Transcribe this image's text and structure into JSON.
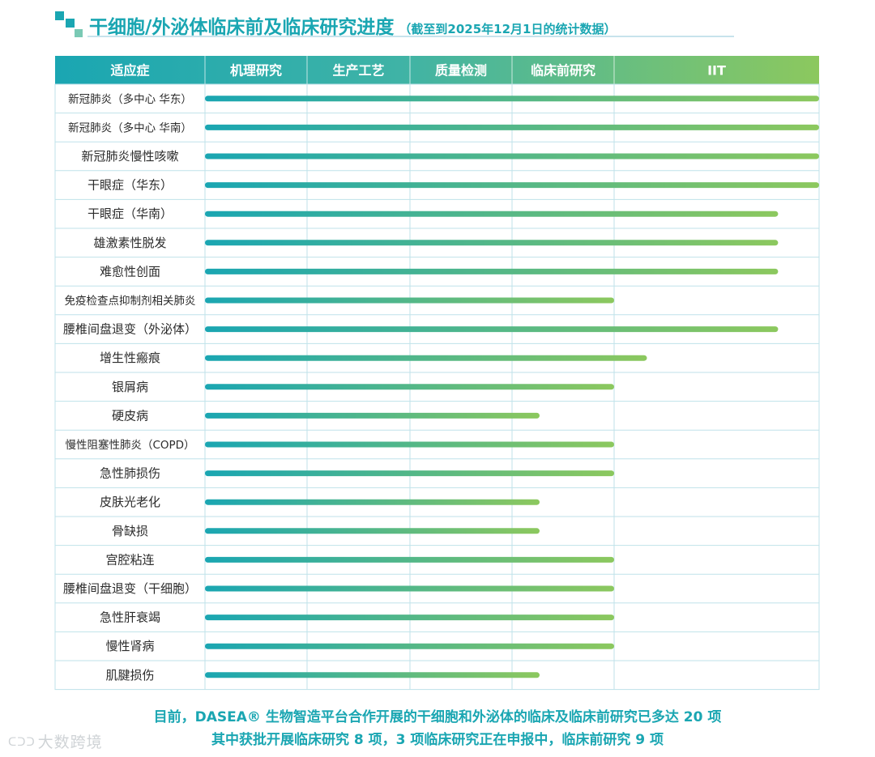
{
  "header": {
    "title": "干细胞/外泌体临床前及临床研究进度",
    "subtitle": "（截至到2025年12月1日的统计数据）"
  },
  "colors": {
    "accent": "#1aa6b2",
    "gradient_start": "#1aa6b2",
    "gradient_end": "#8cc85e",
    "grid": "#bfe2ea",
    "row_label_text": "#2b2b2b"
  },
  "chart_data": {
    "type": "bar",
    "orientation": "horizontal",
    "column_header": "适应症",
    "stages": [
      "机理研究",
      "生产工艺",
      "质量检测",
      "临床前研究",
      "IIT"
    ],
    "value_unit": "stages completed (0–5 scale, 5 = end of IIT column)",
    "xlim": [
      0,
      5
    ],
    "categories": [
      "新冠肺炎（多中心 华东）",
      "新冠肺炎（多中心 华南）",
      "新冠肺炎慢性咳嗽",
      "干眼症（华东）",
      "干眼症（华南）",
      "雄激素性脱发",
      "难愈性创面",
      "免疫检查点抑制剂相关肺炎",
      "腰椎间盘退变（外泌体）",
      "增生性瘢痕",
      "银屑病",
      "硬皮病",
      "慢性阻塞性肺炎（COPD）",
      "急性肺损伤",
      "皮肤光老化",
      "骨缺损",
      "宫腔粘连",
      "腰椎间盘退变（干细胞）",
      "急性肝衰竭",
      "慢性肾病",
      "肌腱损伤"
    ],
    "values": [
      5,
      5,
      5,
      5,
      4.8,
      4.8,
      4.8,
      4.0,
      4.8,
      4.16,
      4.0,
      3.27,
      4.0,
      4.0,
      3.27,
      3.27,
      4.0,
      4.0,
      4.0,
      4.0,
      3.27
    ],
    "grid": true,
    "legend": "none"
  },
  "footnote": {
    "line1": "目前，DASEA® 生物智造平台合作开展的干细胞和外泌体的临床及临床前研究已多达 20 项",
    "line2": "其中获批开展临床研究 8 项，3 项临床研究正在申报中，临床前研究 9 项"
  },
  "watermark": {
    "symbol": "ᑕᑐᑐ",
    "text": "大数跨境"
  }
}
